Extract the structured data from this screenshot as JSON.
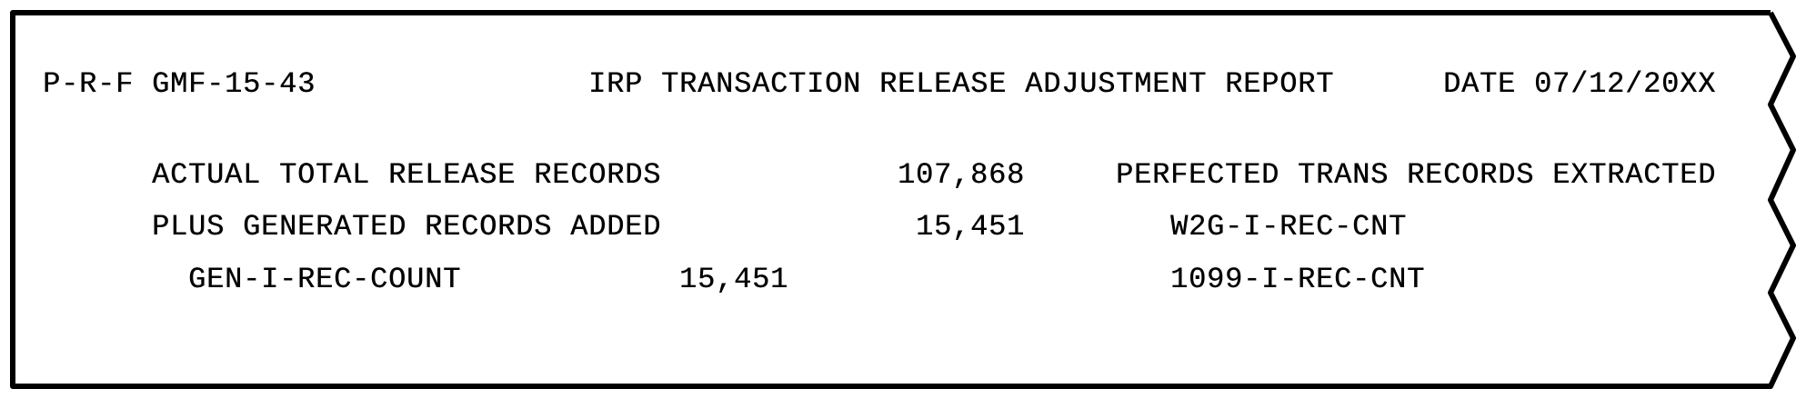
{
  "header": {
    "report_id": "P-R-F GMF-15-43",
    "title": "IRP TRANSACTION RELEASE ADJUSTMENT REPORT",
    "date": "DATE 07/12/20XX"
  },
  "rows": [
    {
      "label": "ACTUAL TOTAL RELEASE RECORDS",
      "value": "107,868",
      "right": "PERFECTED TRANS RECORDS EXTRACTED"
    },
    {
      "label": "PLUS GENERATED RECORDS ADDED",
      "value": "15,451",
      "right": "W2G-I-REC-CNT"
    },
    {
      "label": "GEN-I-REC-COUNT",
      "value": "15,451",
      "right": "1099-I-REC-CNT"
    }
  ],
  "colors": {
    "ink": "#000000",
    "paper": "#ffffff"
  }
}
